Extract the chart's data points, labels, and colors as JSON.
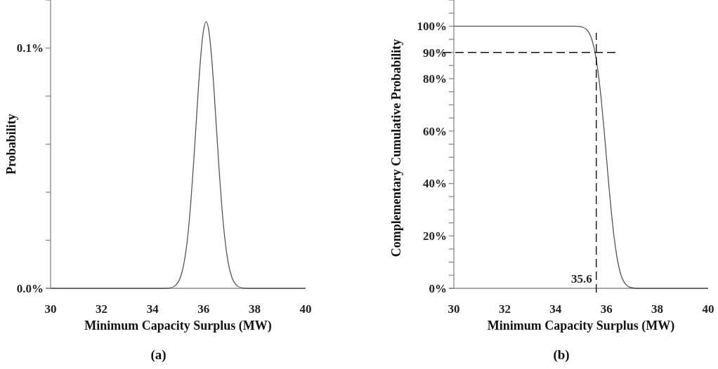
{
  "chart_data": [
    {
      "type": "line",
      "xlabel": "Minimum Capacity Surplus (MW)",
      "ylabel": "Probability",
      "color": "#555555",
      "x": [
        30,
        34.5,
        34.7,
        34.9,
        35.0,
        35.1,
        35.2,
        35.3,
        35.4,
        35.5,
        35.6,
        35.7,
        35.8,
        35.9,
        36.0,
        36.1,
        36.2,
        36.3,
        36.4,
        36.5,
        36.6,
        36.7,
        36.8,
        36.9,
        37.0,
        37.1,
        37.3,
        37.5,
        37.7,
        40
      ],
      "values": [
        0,
        0,
        0.0002,
        0.0012,
        0.0025,
        0.0049,
        0.0088,
        0.015,
        0.024,
        0.036,
        0.0508,
        0.0673,
        0.0838,
        0.098,
        0.1076,
        0.111,
        0.1076,
        0.098,
        0.0838,
        0.0673,
        0.0508,
        0.036,
        0.024,
        0.015,
        0.0088,
        0.0049,
        0.0012,
        0.0002,
        0,
        0
      ],
      "xlim": [
        30,
        40
      ],
      "xticks": [
        30,
        32,
        34,
        36,
        38,
        40
      ],
      "ylim": [
        0,
        0.12
      ],
      "yticks": [
        {
          "value": 0,
          "label": "0.0%"
        },
        {
          "value": 0.02,
          "label": null
        },
        {
          "value": 0.04,
          "label": null
        },
        {
          "value": 0.06,
          "label": null
        },
        {
          "value": 0.08,
          "label": null
        },
        {
          "value": 0.1,
          "label": "0.1%"
        },
        {
          "value": 0.12,
          "label": null
        }
      ],
      "annotations": [
        "(a)"
      ]
    },
    {
      "type": "line",
      "xlabel": "Minimum Capacity Surplus (MW)",
      "ylabel": "Complementary Cumulative Probability",
      "color": "#555555",
      "x": [
        30,
        34.8,
        35.0,
        35.1,
        35.2,
        35.3,
        35.4,
        35.5,
        35.6,
        35.7,
        35.8,
        35.9,
        36.0,
        36.1,
        36.2,
        36.3,
        36.4,
        36.5,
        36.6,
        36.7,
        36.8,
        36.9,
        37.0,
        37.2,
        40
      ],
      "values": [
        100,
        100,
        99.8,
        99.5,
        98.9,
        97.7,
        95.7,
        92.3,
        87.3,
        80.4,
        71.6,
        61.3,
        50,
        38.7,
        28.4,
        19.6,
        12.7,
        7.7,
        4.3,
        2.3,
        1.1,
        0.5,
        0.2,
        0,
        0
      ],
      "xlim": [
        30,
        40
      ],
      "xticks": [
        30,
        32,
        34,
        36,
        38,
        40
      ],
      "ylim": [
        0,
        110
      ],
      "yticks": [
        {
          "value": 0,
          "label": "0%"
        },
        {
          "value": 5,
          "label": null
        },
        {
          "value": 10,
          "label": null
        },
        {
          "value": 15,
          "label": null
        },
        {
          "value": 20,
          "label": "20%"
        },
        {
          "value": 25,
          "label": null
        },
        {
          "value": 30,
          "label": null
        },
        {
          "value": 35,
          "label": null
        },
        {
          "value": 40,
          "label": "40%"
        },
        {
          "value": 45,
          "label": null
        },
        {
          "value": 50,
          "label": null
        },
        {
          "value": 55,
          "label": null
        },
        {
          "value": 60,
          "label": "60%"
        },
        {
          "value": 65,
          "label": null
        },
        {
          "value": 70,
          "label": null
        },
        {
          "value": 75,
          "label": null
        },
        {
          "value": 80,
          "label": "80%"
        },
        {
          "value": 85,
          "label": null
        },
        {
          "value": 90,
          "label": "90%"
        },
        {
          "value": 95,
          "label": null
        },
        {
          "value": 100,
          "label": "100%"
        },
        {
          "value": 105,
          "label": null
        },
        {
          "value": 110,
          "label": null
        }
      ],
      "ref_lines": [
        {
          "axis": "x",
          "value": 35.6,
          "label": "35.6",
          "line_style": "dashed"
        },
        {
          "axis": "y",
          "value": 90,
          "line_style": "dashed"
        }
      ],
      "annotations": [
        "(b)"
      ]
    }
  ]
}
